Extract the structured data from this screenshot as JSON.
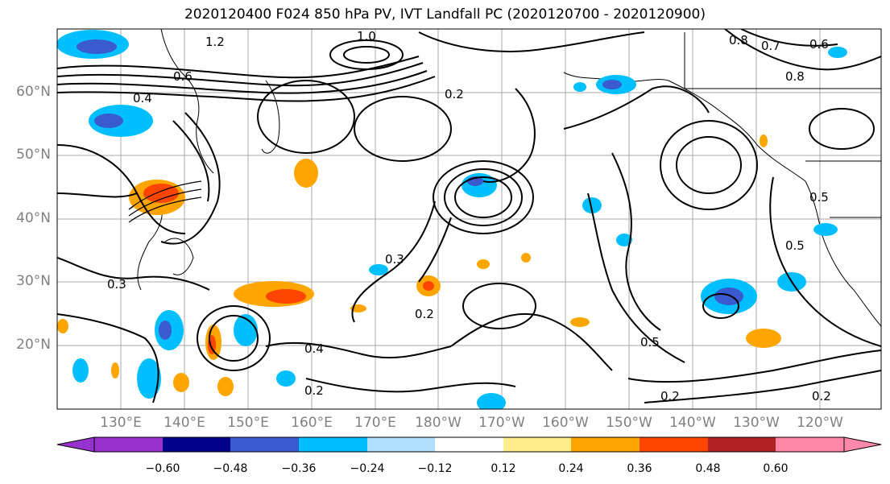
{
  "title": "2020120400 F024 850 hPa PV, IVT Landfall PC (2020120700 - 2020120900)",
  "map": {
    "lat_labels": [
      "60°N",
      "50°N",
      "40°N",
      "30°N",
      "20°N"
    ],
    "lon_labels": [
      "130°E",
      "140°E",
      "150°E",
      "160°E",
      "170°E",
      "180°W",
      "170°W",
      "160°W",
      "150°W",
      "140°W",
      "130°W",
      "120°W"
    ],
    "contour_labels": [
      "1.0",
      "1.2",
      "0.8",
      "0.6",
      "0.4",
      "0.2",
      "0.3",
      "0.5",
      "0.7",
      "0.6",
      "0.8",
      "0.5",
      "0.3",
      "0.2",
      "0.4",
      "0.2",
      "0.5",
      "0.2",
      "0.2"
    ]
  },
  "colorbar": {
    "ticks": [
      "−0.60",
      "−0.48",
      "−0.36",
      "−0.24",
      "−0.12",
      "0.12",
      "0.24",
      "0.36",
      "0.48",
      "0.60"
    ],
    "colors": [
      "#9932cc",
      "#00008b",
      "#3a5bd0",
      "#00bfff",
      "#b0e0ff",
      "#ffffff",
      "#ffec8b",
      "#ffa500",
      "#ff4500",
      "#b22222",
      "#ff88aa"
    ]
  }
}
